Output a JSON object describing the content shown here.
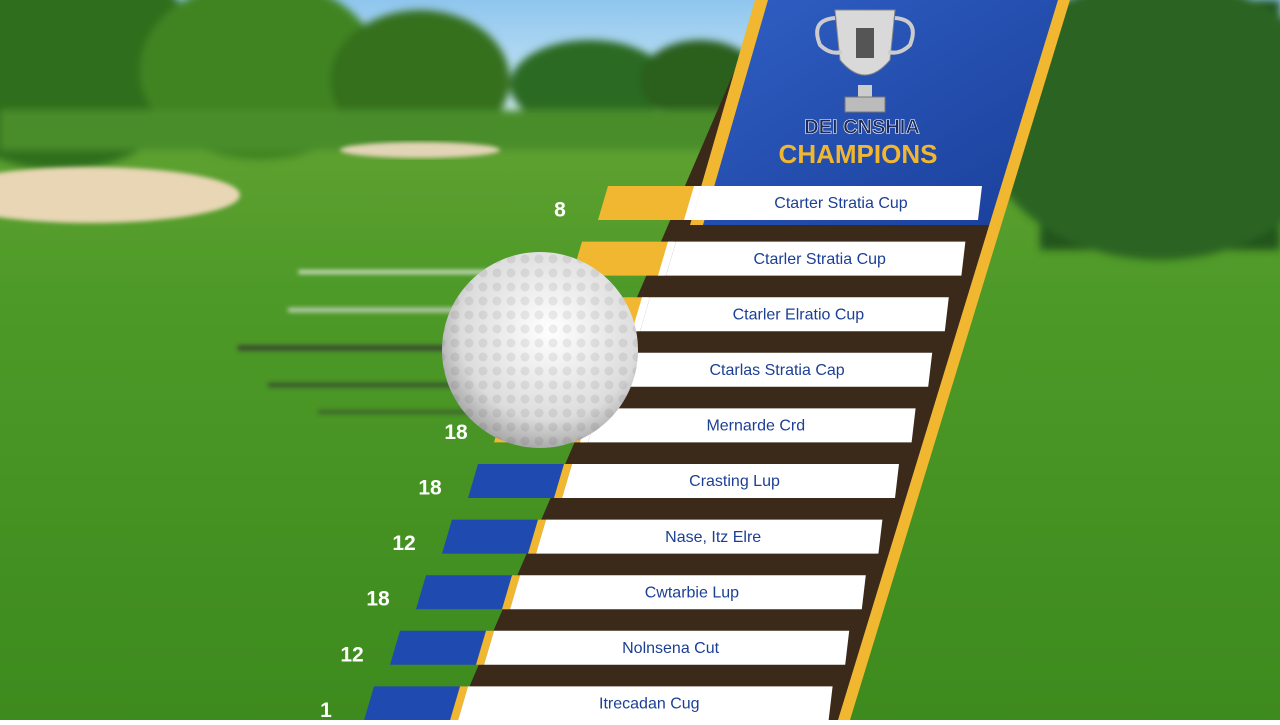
{
  "header": {
    "title": "DEI CNSHIA",
    "subtitle": "CHAMPIONS"
  },
  "rows": [
    {
      "label": "Ctarter Stratia Cup",
      "number": 8
    },
    {
      "label": "Ctarler Stratia Cup"
    },
    {
      "label": "Ctarler Elratio Cup"
    },
    {
      "label": "Ctarlas Stratia Cap"
    },
    {
      "label": "Mernarde Crd",
      "number": 18
    },
    {
      "label": "Crasting Lup",
      "number": 18
    },
    {
      "label": "Nase, Itz Elre",
      "number": 12
    },
    {
      "label": "Cwtarbie Lup",
      "number": 18
    },
    {
      "label": "Nolnsena Cut",
      "number": 12
    },
    {
      "label": "Itrecadan Cug",
      "number": 1
    }
  ]
}
